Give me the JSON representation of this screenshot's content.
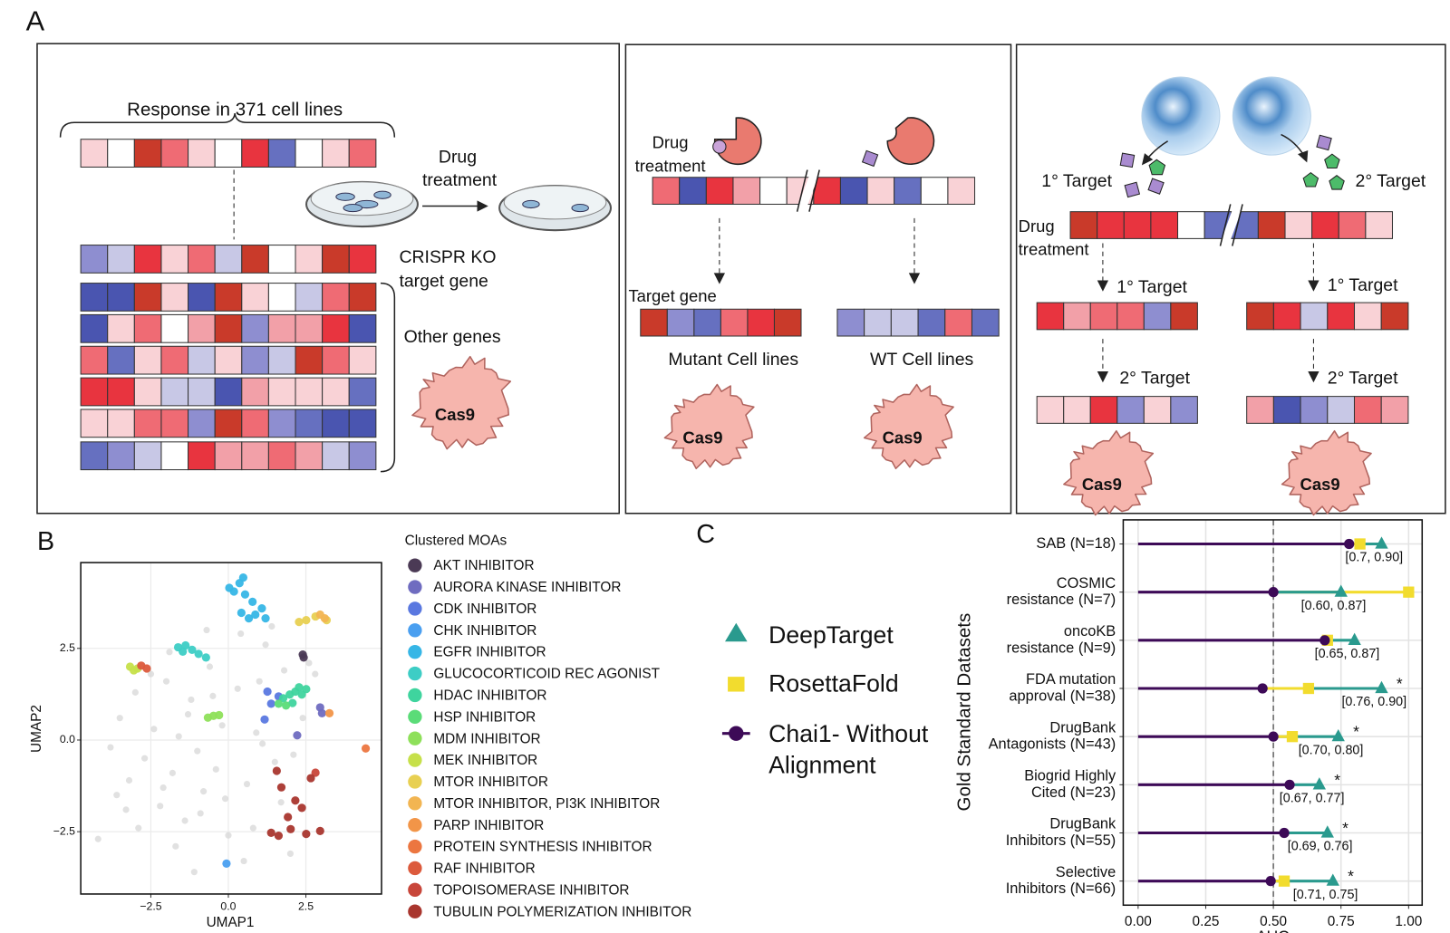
{
  "panel_labels": [
    "A",
    "B",
    "C"
  ],
  "panel_a": {
    "response_title": "Response in 371 cell lines",
    "drug_treatment_left": [
      "Drug",
      "treatment"
    ],
    "crispr_label": [
      "CRISPR KO",
      "target gene"
    ],
    "other_genes": "Other genes",
    "cas9": "Cas9",
    "drug_treatment_middle": [
      "Drug",
      "treatment"
    ],
    "target_gene": "Target gene",
    "mutant": "Mutant Cell lines",
    "wt": "WT Cell lines",
    "primary_target": "1° Target",
    "secondary_target": "2° Target",
    "drug_treatment_right": [
      "Drug",
      "treatment"
    ]
  },
  "chart_data": [
    {
      "type": "scatter",
      "x_label": "UMAP1",
      "y_label": "UMAP2",
      "legend_title": "Clustered MOAs",
      "xlim": [
        -4.76,
        4.94
      ],
      "ylim": [
        -4.2,
        4.84
      ],
      "xticks": [
        {
          "value": -2.5,
          "label": "−2.5"
        },
        {
          "value": 0,
          "label": "0.0"
        },
        2.5
      ],
      "yticks": [
        {
          "value": -2.5,
          "label": "−2.5"
        },
        {
          "value": 0,
          "label": "0.0"
        },
        2.5
      ],
      "grid": true,
      "series": [
        {
          "name": "AKT INHIBITOR",
          "color": "#4b3a55",
          "x": [
            2.4,
            2.43
          ],
          "y": [
            2.33,
            2.25
          ]
        },
        {
          "name": "AURORA KINASE INHIBITOR",
          "color": "#6f6cc0",
          "x": [
            2.96,
            2.22,
            3.02
          ],
          "y": [
            0.89,
            0.13,
            0.73
          ]
        },
        {
          "name": "CDK INHIBITOR",
          "color": "#5a78e0",
          "x": [
            1.26,
            1.38,
            1.17,
            1.62
          ],
          "y": [
            1.32,
            0.99,
            0.56,
            1.19
          ]
        },
        {
          "name": "CHK INHIBITOR",
          "color": "#4a9ff0",
          "x": [
            -0.06
          ],
          "y": [
            -3.37
          ]
        },
        {
          "name": "EGFR INHIBITOR",
          "color": "#36b6e6",
          "x": [
            0.03,
            0.18,
            0.36,
            0.48,
            0.54,
            0.42,
            0.66,
            0.87,
            1.08,
            0.78,
            1.2
          ],
          "y": [
            4.15,
            4.05,
            4.28,
            4.43,
            3.97,
            3.47,
            3.32,
            3.42,
            3.59,
            3.77,
            3.32
          ]
        },
        {
          "name": "GLUCOCORTICOID REC AGONIST",
          "color": "#3dcdc5",
          "x": [
            -1.62,
            -1.38,
            -1.17,
            -0.96,
            -0.72,
            -1.47
          ],
          "y": [
            2.53,
            2.58,
            2.46,
            2.35,
            2.25,
            2.41
          ]
        },
        {
          "name": "HDAC INHIBITOR",
          "color": "#3fd49e",
          "x": [
            1.77,
            1.98,
            2.16,
            2.37,
            2.51,
            2.07,
            2.28
          ],
          "y": [
            1.14,
            1.24,
            1.32,
            1.24,
            1.39,
            1.01,
            1.44
          ]
        },
        {
          "name": "HSP INHIBITOR",
          "color": "#5bdc78",
          "x": [
            1.62,
            1.86
          ],
          "y": [
            0.99,
            0.94
          ]
        },
        {
          "name": "MDM INHIBITOR",
          "color": "#8ee05a",
          "x": [
            -0.66,
            -0.48,
            -0.3
          ],
          "y": [
            0.61,
            0.66,
            0.68
          ]
        },
        {
          "name": "MEK INHIBITOR",
          "color": "#c6e04a",
          "x": [
            -3.17,
            -3.05,
            -2.93
          ],
          "y": [
            2.0,
            1.9,
            1.95
          ]
        },
        {
          "name": "MTOR INHIBITOR",
          "color": "#e8d052",
          "x": [
            2.28,
            2.51,
            2.81,
            3.17
          ],
          "y": [
            3.22,
            3.27,
            3.37,
            3.27
          ]
        },
        {
          "name": "MTOR INHIBITOR, PI3K INHIBITOR",
          "color": "#f2b552",
          "x": [
            2.96,
            3.11
          ],
          "y": [
            3.42,
            3.32
          ]
        },
        {
          "name": "PARP INHIBITOR",
          "color": "#f29548",
          "x": [
            3.26
          ],
          "y": [
            0.73
          ]
        },
        {
          "name": "PROTEIN SYNTHESIS INHIBITOR",
          "color": "#ec7640",
          "x": [
            4.43
          ],
          "y": [
            -0.23
          ]
        },
        {
          "name": "RAF INHIBITOR",
          "color": "#dc5a3c",
          "x": [
            -2.81,
            -2.63
          ],
          "y": [
            2.03,
            1.95
          ]
        },
        {
          "name": "TOPOISOMERASE INHIBITOR",
          "color": "#c8463a",
          "x": [
            2.81
          ],
          "y": [
            -0.89
          ]
        },
        {
          "name": "TUBULIN POLYMERIZATION INHIBITOR",
          "color": "#a9362e",
          "x": [
            1.56,
            1.71,
            2.16,
            2.37,
            2.01,
            1.38,
            2.66,
            2.51,
            1.92,
            2.96,
            1.62
          ],
          "y": [
            -0.84,
            -1.29,
            -1.65,
            -1.85,
            -2.43,
            -2.53,
            -1.04,
            -2.56,
            -2.1,
            -2.48,
            -2.61
          ]
        },
        {
          "color": "#d4d4d4",
          "x": [
            -3.8,
            -3.5,
            -3.2,
            -3.0,
            -2.7,
            -2.4,
            -2.2,
            -2.0,
            -1.8,
            -1.6,
            -1.4,
            -1.2,
            -1.0,
            -0.8,
            -0.6,
            -0.4,
            -0.2,
            0.0,
            0.3,
            0.6,
            0.9,
            1.2,
            1.5,
            1.8,
            2.1,
            2.4,
            -3.3,
            -2.9,
            -2.5,
            -2.1,
            -1.7,
            -1.3,
            -0.9,
            -0.5,
            -0.1,
            0.4,
            0.8,
            1.1,
            1.4,
            1.7,
            2.0,
            2.6,
            -1.9,
            -0.7,
            0.5,
            1.0,
            2.8,
            -4.2,
            -3.6,
            -1.1
          ],
          "y": [
            -0.2,
            0.6,
            -1.1,
            1.3,
            -0.5,
            0.3,
            -1.8,
            1.6,
            -0.9,
            0.1,
            -2.2,
            1.1,
            -0.3,
            -1.4,
            2.0,
            -0.8,
            0.4,
            -2.6,
            1.4,
            -1.2,
            0.2,
            2.6,
            -0.6,
            1.9,
            -0.4,
            0.6,
            -1.9,
            -2.4,
            1.8,
            -1.3,
            -2.9,
            0.7,
            -2.0,
            1.2,
            -1.6,
            2.9,
            -2.4,
            -0.1,
            3.1,
            -1.7,
            -3.1,
            2.1,
            2.4,
            3.0,
            -3.3,
            1.6,
            1.8,
            -2.7,
            -1.5,
            -3.6
          ]
        }
      ]
    },
    {
      "type": "dumbbell",
      "x_label": "AUC",
      "y_label": "Gold Standard Datasets",
      "categories": [
        [
          "SAB (N=18)"
        ],
        [
          "COSMIC",
          "resistance (N=7)"
        ],
        [
          "oncoKB",
          "resistance (N=9)"
        ],
        [
          "FDA mutation",
          "approval (N=38)"
        ],
        [
          "DrugBank",
          "Antagonists (N=43)"
        ],
        [
          "Biogrid Highly",
          "Cited (N=23)"
        ],
        [
          "DrugBank",
          "Inhibitors (N=55)"
        ],
        [
          "Selective",
          "Inhibitors (N=66)"
        ]
      ],
      "xlim": [
        -0.055,
        1.05
      ],
      "xticks": [
        {
          "value": 0,
          "label": "0.00"
        },
        {
          "value": 0.25,
          "label": "0.25"
        },
        {
          "value": 0.5,
          "label": "0.50"
        },
        {
          "value": 0.75,
          "label": "0.75"
        },
        {
          "value": 1,
          "label": "1.00"
        }
      ],
      "reference_line": 0.5,
      "grid": true,
      "series": [
        {
          "name": "DeepTarget",
          "color": "#2a9a8e",
          "marker": "triangle",
          "values": [
            0.9,
            0.75,
            0.8,
            0.9,
            0.74,
            0.67,
            0.7,
            0.72
          ]
        },
        {
          "name": "RosettaFold",
          "color": "#f2dc2e",
          "marker": "square",
          "values": [
            0.82,
            1.0,
            0.7,
            0.63,
            0.57,
            null,
            null,
            0.54
          ]
        },
        {
          "name": "Chai1- Without Alignment",
          "color": "#3d0a57",
          "marker": "circle",
          "values": [
            0.78,
            0.5,
            0.69,
            0.46,
            0.5,
            0.56,
            0.54,
            0.49
          ]
        }
      ],
      "interval_labels": [
        "[0.7, 0.90]",
        "[0.60, 0.87]",
        "[0.65, 0.87]",
        "[0.76, 0.90]",
        "[0.70, 0.80]",
        "[0.67, 0.77]",
        "[0.69, 0.76]",
        "[0.71, 0.75]"
      ],
      "annotations": [
        {
          "category": 3,
          "text": "*"
        },
        {
          "category": 4,
          "text": "*"
        },
        {
          "category": 5,
          "text": "*"
        },
        {
          "category": 6,
          "text": "*"
        },
        {
          "category": 7,
          "text": "*"
        }
      ]
    }
  ]
}
